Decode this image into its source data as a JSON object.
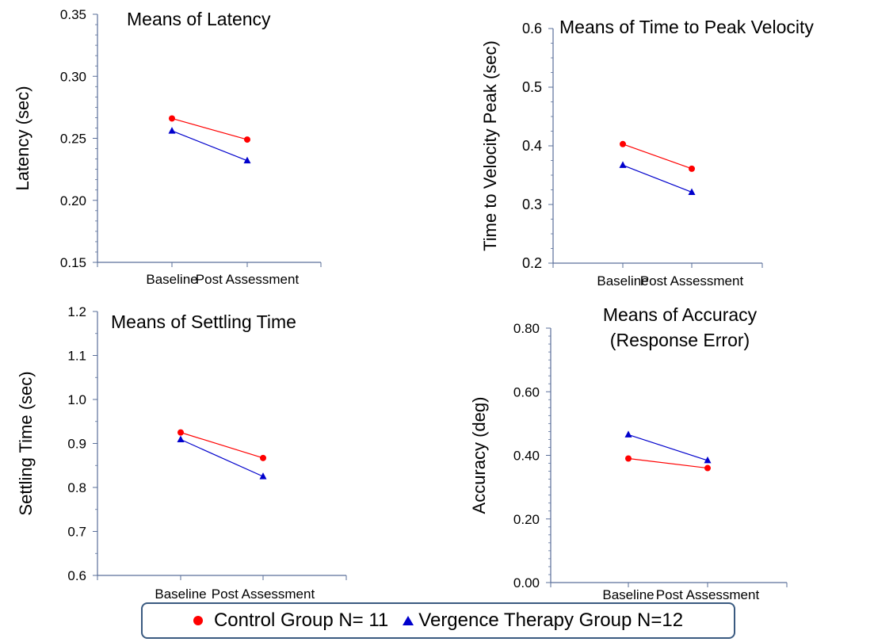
{
  "colors": {
    "control": "#ff0000",
    "vergence": "#0000cc",
    "axis": "#5a6f9a"
  },
  "legend": {
    "control_label": "Control Group  N= 11",
    "vergence_label": "Vergence Therapy Group N=12"
  },
  "chart_data": [
    {
      "type": "line",
      "title": [
        "Means of Latency"
      ],
      "ylabel": "Latency (sec)",
      "xlabel": "",
      "categories": [
        "Baseline",
        "Post Assessment"
      ],
      "ylim": [
        0.15,
        0.35
      ],
      "yticks": [
        "0.15",
        "0.20",
        "0.25",
        "0.30",
        "0.35"
      ],
      "series": [
        {
          "key": "control",
          "values": [
            0.266,
            0.249
          ]
        },
        {
          "key": "vergence",
          "values": [
            0.256,
            0.232
          ]
        }
      ]
    },
    {
      "type": "line",
      "title": [
        "Means of Time to Peak Velocity"
      ],
      "ylabel": "Time to Velocity  Peak  (sec)",
      "xlabel": "",
      "categories": [
        "Baseline",
        "Post Assessment"
      ],
      "ylim": [
        0.2,
        0.6
      ],
      "yticks": [
        "0.2",
        "0.3",
        "0.4",
        "0.5",
        "0.6"
      ],
      "series": [
        {
          "key": "control",
          "values": [
            0.403,
            0.361
          ]
        },
        {
          "key": "vergence",
          "values": [
            0.367,
            0.321
          ]
        }
      ]
    },
    {
      "type": "line",
      "title": [
        "Means of Settling Time"
      ],
      "ylabel": "Settling Time (sec)",
      "xlabel": "",
      "categories": [
        "Baseline",
        "Post Assessment"
      ],
      "ylim": [
        0.6,
        1.2
      ],
      "yticks": [
        "0.6",
        "0.7",
        "0.8",
        "0.9",
        "1.0",
        "1.1",
        "1.2"
      ],
      "series": [
        {
          "key": "control",
          "values": [
            0.925,
            0.867
          ]
        },
        {
          "key": "vergence",
          "values": [
            0.909,
            0.825
          ]
        }
      ]
    },
    {
      "type": "line",
      "title": [
        "Means of Accuracy",
        "(Response Error)"
      ],
      "ylabel": "Accuracy (deg)",
      "xlabel": "",
      "categories": [
        "Baseline",
        "Post Assessment"
      ],
      "ylim": [
        0.0,
        0.8
      ],
      "yticks": [
        "0.00",
        "0.20",
        "0.40",
        "0.60",
        "0.80"
      ],
      "series": [
        {
          "key": "control",
          "values": [
            0.39,
            0.36
          ]
        },
        {
          "key": "vergence",
          "values": [
            0.465,
            0.384
          ]
        }
      ]
    }
  ]
}
